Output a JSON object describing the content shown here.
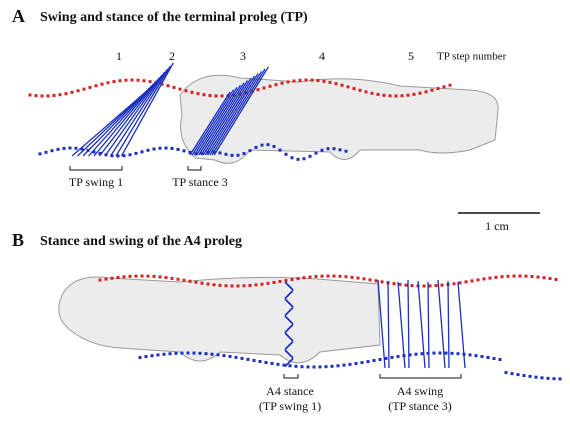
{
  "panel_a": {
    "letter": "A",
    "title": "Swing and stance of the terminal proleg (TP)",
    "step_numbers": [
      "1",
      "2",
      "3",
      "4",
      "5"
    ],
    "step_number_label": "TP step number",
    "swing_label": "TP swing 1",
    "stance_label": "TP stance 3",
    "scale_bar": "1 cm"
  },
  "panel_b": {
    "letter": "B",
    "title": "Stance and swing of the A4 proleg",
    "stance_label": "A4 stance",
    "stance_note": "(TP swing 1)",
    "swing_label": "A4 swing",
    "swing_note": "(TP stance 3)"
  }
}
